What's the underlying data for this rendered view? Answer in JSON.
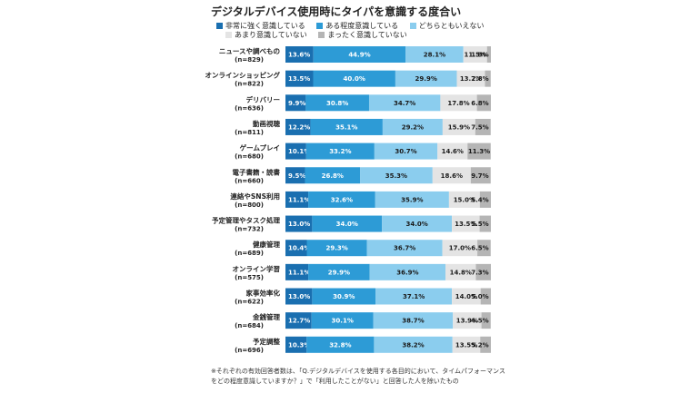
{
  "chart_data": {
    "type": "bar",
    "stacked": true,
    "orientation": "horizontal",
    "title": "デジタルデバイス使用時にタイパを意識する度合い",
    "categories": [
      {
        "label": "ニュースや調べもの",
        "n": "(n=829)"
      },
      {
        "label": "オンラインショッピング",
        "n": "(n=822)"
      },
      {
        "label": "デリバリー",
        "n": "(n=636)"
      },
      {
        "label": "動画視聴",
        "n": "(n=811)"
      },
      {
        "label": "ゲームプレイ",
        "n": "(n=680)"
      },
      {
        "label": "電子書籍・読書",
        "n": "(n=660)"
      },
      {
        "label": "連絡やSNS利用",
        "n": "(n=800)"
      },
      {
        "label": "予定管理やタスク処理",
        "n": "(n=732)"
      },
      {
        "label": "健康管理",
        "n": "(n=689)"
      },
      {
        "label": "オンライン学習",
        "n": "(n=575)"
      },
      {
        "label": "家事効率化",
        "n": "(n=622)"
      },
      {
        "label": "金銭管理",
        "n": "(n=684)"
      },
      {
        "label": "予定調整",
        "n": "(n=696)"
      }
    ],
    "series": [
      {
        "name": "非常に強く意識している",
        "color": "#1a6fb0",
        "values": [
          13.6,
          13.5,
          9.9,
          12.2,
          10.1,
          9.5,
          11.1,
          13.0,
          10.4,
          11.1,
          13.0,
          12.7,
          10.3
        ]
      },
      {
        "name": "ある程度意識している",
        "color": "#2d9bd6",
        "values": [
          44.9,
          40.0,
          30.8,
          35.1,
          33.2,
          26.8,
          32.6,
          34.0,
          29.3,
          29.9,
          30.9,
          30.1,
          32.8
        ]
      },
      {
        "name": "どちらともいえない",
        "color": "#8bcdee",
        "values": [
          28.1,
          29.9,
          34.7,
          29.2,
          30.7,
          35.3,
          35.9,
          34.0,
          36.7,
          36.9,
          37.1,
          38.7,
          38.2
        ]
      },
      {
        "name": "あまり意識していない",
        "color": "#e4e4e4",
        "values": [
          11.5,
          13.7,
          17.8,
          15.9,
          14.6,
          18.6,
          15.0,
          13.5,
          17.0,
          14.8,
          14.0,
          13.9,
          13.5
        ]
      },
      {
        "name": "まったく意識していない",
        "color": "#b5b5b5",
        "values": [
          1.9,
          2.8,
          6.8,
          7.5,
          11.3,
          9.7,
          5.4,
          5.5,
          6.5,
          7.3,
          5.0,
          4.5,
          5.2
        ]
      }
    ],
    "xlim": [
      0,
      100
    ],
    "legend_position": "top",
    "grid": false
  },
  "footnote_lines": [
    "※それぞれの有効回答者数は、「Q.デジタルデバイスを使用する各目的において、タイムパフォーマンス",
    "をどの程度意識していますか？」で「利用したことがない」と回答した人を除いたもの"
  ]
}
